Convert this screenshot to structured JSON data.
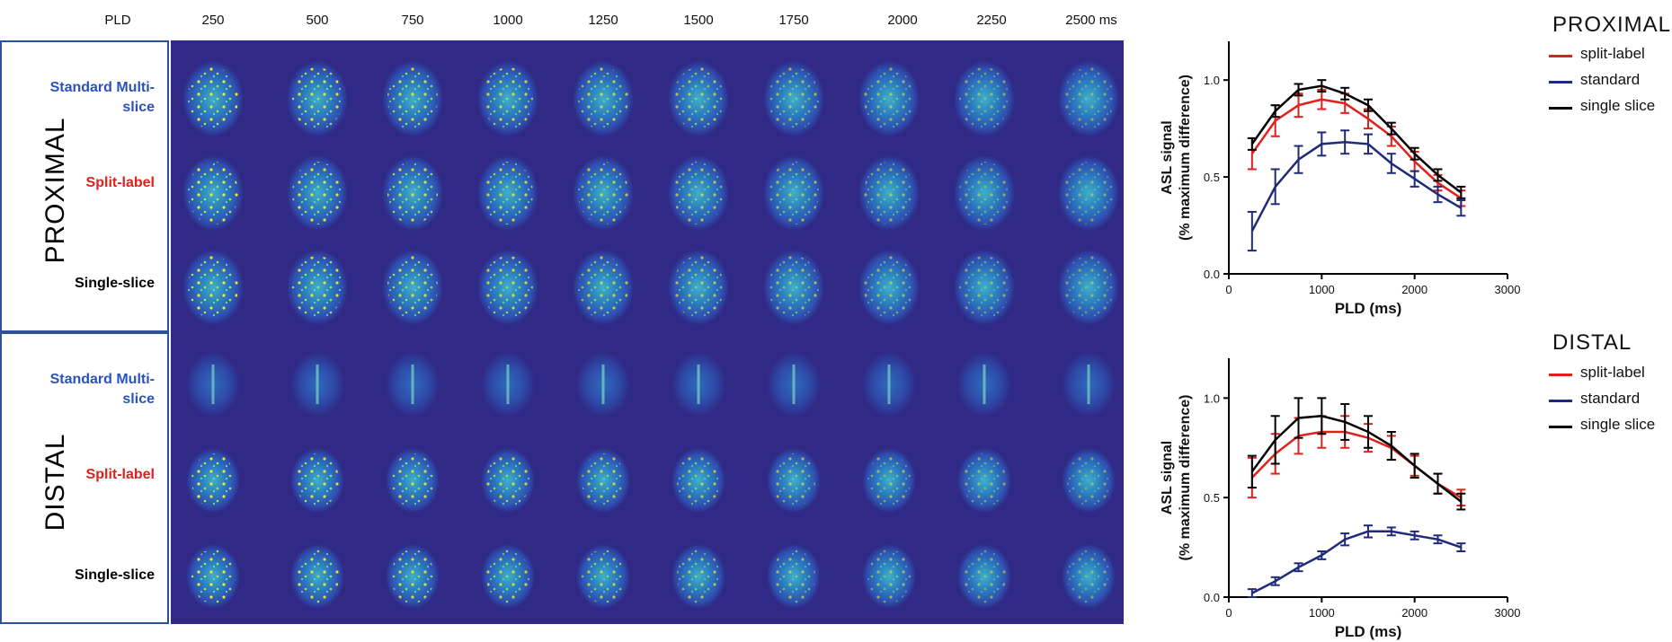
{
  "header": {
    "pld_label": "PLD",
    "times": [
      "250",
      "500",
      "750",
      "1000",
      "1250",
      "1500",
      "1750",
      "2000",
      "2250",
      "2500 ms"
    ]
  },
  "sections": [
    {
      "title": "PROXIMAL",
      "rows": [
        {
          "label": "Standard Multi-slice",
          "color": "#2a52be"
        },
        {
          "label": "Split-label",
          "color": "#e0201b"
        },
        {
          "label": "Single-slice",
          "color": "#000000"
        }
      ]
    },
    {
      "title": "DISTAL",
      "rows": [
        {
          "label": "Standard Multi-slice",
          "color": "#2a52be"
        },
        {
          "label": "Split-label",
          "color": "#e0201b"
        },
        {
          "label": "Single-slice",
          "color": "#000000"
        }
      ]
    }
  ],
  "colors": {
    "background": "#302a86",
    "split": "#e0201b",
    "standard": "#1f2a7a",
    "single": "#000000"
  },
  "chart_data": [
    {
      "type": "line",
      "title": "PROXIMAL",
      "xlabel": "PLD (ms)",
      "ylabel": "ASL signal",
      "ylabel2": "(% maximum difference)",
      "xlim": [
        0,
        3000
      ],
      "ylim": [
        0,
        1.2
      ],
      "xticks": [
        "0",
        "1000",
        "2000",
        "3000"
      ],
      "yticks": [
        "0.0",
        "0.5",
        "1.0"
      ],
      "legend_position": "top-right",
      "x": [
        250,
        500,
        750,
        1000,
        1250,
        1500,
        1750,
        2000,
        2250,
        2500
      ],
      "series": [
        {
          "name": "split-label",
          "color": "#e0201b",
          "values": [
            0.62,
            0.79,
            0.87,
            0.9,
            0.88,
            0.8,
            0.71,
            0.58,
            0.47,
            0.39
          ],
          "errors": [
            0.08,
            0.08,
            0.06,
            0.05,
            0.05,
            0.05,
            0.05,
            0.05,
            0.04,
            0.04
          ]
        },
        {
          "name": "standard",
          "color": "#1f2a7a",
          "values": [
            0.22,
            0.45,
            0.59,
            0.67,
            0.68,
            0.67,
            0.57,
            0.49,
            0.41,
            0.34
          ],
          "errors": [
            0.1,
            0.09,
            0.07,
            0.06,
            0.06,
            0.05,
            0.05,
            0.04,
            0.04,
            0.04
          ]
        },
        {
          "name": "single slice",
          "color": "#000000",
          "values": [
            0.67,
            0.84,
            0.95,
            0.97,
            0.93,
            0.87,
            0.75,
            0.62,
            0.51,
            0.42
          ],
          "errors": [
            0.03,
            0.03,
            0.03,
            0.03,
            0.03,
            0.03,
            0.03,
            0.03,
            0.03,
            0.03
          ]
        }
      ]
    },
    {
      "type": "line",
      "title": "DISTAL",
      "xlabel": "PLD (ms)",
      "ylabel": "ASL signal",
      "ylabel2": "(% maximum difference)",
      "xlim": [
        0,
        3000
      ],
      "ylim": [
        0,
        1.2
      ],
      "xticks": [
        "0",
        "1000",
        "2000",
        "3000"
      ],
      "yticks": [
        "0.0",
        "0.5",
        "1.0"
      ],
      "legend_position": "top-right",
      "x": [
        250,
        500,
        750,
        1000,
        1250,
        1500,
        1750,
        2000,
        2250,
        2500
      ],
      "series": [
        {
          "name": "split-label",
          "color": "#e0201b",
          "values": [
            0.6,
            0.72,
            0.81,
            0.83,
            0.83,
            0.8,
            0.75,
            0.66,
            0.57,
            0.5
          ],
          "errors": [
            0.1,
            0.1,
            0.09,
            0.08,
            0.08,
            0.07,
            0.06,
            0.05,
            0.05,
            0.04
          ]
        },
        {
          "name": "standard",
          "color": "#1f2a7a",
          "values": [
            0.02,
            0.08,
            0.15,
            0.21,
            0.29,
            0.33,
            0.33,
            0.31,
            0.29,
            0.25
          ],
          "errors": [
            0.02,
            0.02,
            0.02,
            0.02,
            0.03,
            0.03,
            0.02,
            0.02,
            0.02,
            0.02
          ]
        },
        {
          "name": "single slice",
          "color": "#000000",
          "values": [
            0.63,
            0.79,
            0.9,
            0.91,
            0.88,
            0.83,
            0.76,
            0.66,
            0.57,
            0.48
          ],
          "errors": [
            0.08,
            0.12,
            0.1,
            0.09,
            0.09,
            0.08,
            0.07,
            0.06,
            0.05,
            0.04
          ]
        }
      ]
    }
  ]
}
